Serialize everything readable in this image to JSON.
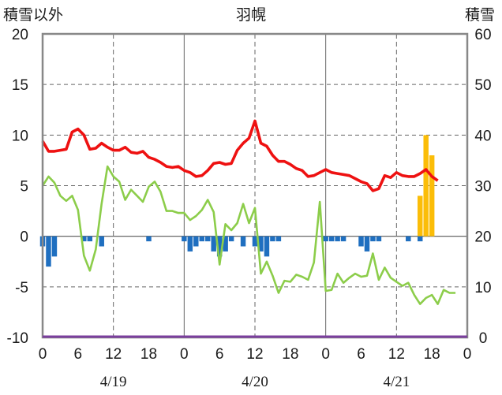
{
  "chart_data": {
    "type": "bar+line",
    "title": "羽幌",
    "left_axis_label": "積雪以外",
    "right_axis_label": "積雪",
    "left_ylim": [
      -10,
      20
    ],
    "left_ticks": [
      "20",
      "15",
      "10",
      "5",
      "0",
      "-5",
      "-10"
    ],
    "right_ylim": [
      0,
      60
    ],
    "right_ticks": [
      "60",
      "50",
      "40",
      "30",
      "20",
      "10",
      "0"
    ],
    "x_ticks": [
      "0",
      "6",
      "12",
      "18",
      "0",
      "6",
      "12",
      "18",
      "0",
      "6",
      "12",
      "18",
      "0"
    ],
    "x_range_hours": [
      0,
      72
    ],
    "dates": [
      "4/19",
      "4/20",
      "4/21"
    ],
    "grid": "dashed",
    "colors": {
      "temperature": "#ee1111",
      "dewpoint": "#8ccd4a",
      "precipitation": "#1f6fc0",
      "snow_depth": "#fbbd08",
      "baseline": "#7b3f9e"
    },
    "temperature": {
      "x": [
        0,
        1,
        2,
        3,
        4,
        5,
        6,
        7,
        8,
        9,
        10,
        11,
        12,
        13,
        14,
        15,
        16,
        17,
        18,
        19,
        20,
        21,
        22,
        23,
        24,
        25,
        26,
        27,
        28,
        29,
        30,
        31,
        32,
        33,
        34,
        35,
        36,
        37,
        38,
        39,
        40,
        41,
        42,
        43,
        44,
        45,
        46,
        47,
        48,
        49,
        50,
        51,
        52,
        53,
        54,
        55,
        56,
        57,
        58,
        59,
        60,
        61,
        62,
        63,
        64,
        65,
        66,
        67
      ],
      "values": [
        9.4,
        8.4,
        8.4,
        8.5,
        8.6,
        10.3,
        10.6,
        10.0,
        8.6,
        8.7,
        9.2,
        8.8,
        8.5,
        8.5,
        8.8,
        8.3,
        8.2,
        8.4,
        7.8,
        7.6,
        7.3,
        6.9,
        6.8,
        6.9,
        6.5,
        6.3,
        5.9,
        6.0,
        6.5,
        7.2,
        7.3,
        7.1,
        7.2,
        8.5,
        9.2,
        9.7,
        11.4,
        9.2,
        8.9,
        8.0,
        7.4,
        7.4,
        7.1,
        6.7,
        6.5,
        5.9,
        6.0,
        6.3,
        6.6,
        6.3,
        6.2,
        6.1,
        6.0,
        5.7,
        5.4,
        5.2,
        4.5,
        4.7,
        6.0,
        5.8,
        6.3,
        6.0,
        5.9,
        5.9,
        6.2,
        6.6,
        5.9,
        5.5
      ]
    },
    "dewpoint": {
      "x": [
        0,
        1,
        2,
        3,
        4,
        5,
        6,
        7,
        8,
        9,
        10,
        11,
        12,
        13,
        14,
        15,
        16,
        17,
        18,
        19,
        20,
        21,
        22,
        23,
        24,
        25,
        26,
        27,
        28,
        29,
        30,
        31,
        32,
        33,
        34,
        35,
        36,
        37,
        38,
        39,
        40,
        41,
        42,
        43,
        44,
        45,
        46,
        47,
        48,
        49,
        50,
        51,
        52,
        53,
        54,
        55,
        56,
        57,
        58,
        59,
        60,
        61,
        62,
        63,
        64,
        65,
        66,
        67,
        68,
        69,
        70
      ],
      "values": [
        5.0,
        5.9,
        5.3,
        4.0,
        3.5,
        4.0,
        2.6,
        -1.9,
        -3.4,
        -1.3,
        3.2,
        6.9,
        5.9,
        5.4,
        3.6,
        4.6,
        4.0,
        3.4,
        4.9,
        5.4,
        4.4,
        2.5,
        2.5,
        2.3,
        2.3,
        1.6,
        2.0,
        2.6,
        3.6,
        2.4,
        -2.8,
        1.2,
        0.6,
        1.3,
        3.2,
        1.3,
        2.8,
        -3.7,
        -2.5,
        -3.9,
        -5.6,
        -4.4,
        -4.5,
        -3.8,
        -4.0,
        -4.3,
        -2.6,
        3.4,
        -5.4,
        -5.3,
        -3.7,
        -4.6,
        -4.1,
        -3.7,
        -4.0,
        -3.9,
        -1.7,
        -4.3,
        -3.1,
        -4.1,
        -4.5,
        -4.9,
        -4.6,
        -5.8,
        -6.7,
        -6.1,
        -5.8,
        -6.7,
        -5.3,
        -5.6,
        -5.6
      ]
    },
    "precipitation": {
      "x": [
        0,
        1,
        2,
        7,
        8,
        10,
        18,
        24,
        25,
        26,
        27,
        28,
        29,
        30,
        31,
        32,
        34,
        36,
        37,
        38,
        39,
        40,
        48,
        49,
        50,
        51,
        54,
        55,
        56,
        57,
        62,
        64
      ],
      "values": [
        -1.0,
        -3.0,
        -2.0,
        -0.5,
        -0.5,
        -1.0,
        -0.5,
        -0.5,
        -1.5,
        -1.0,
        -0.5,
        -0.5,
        -1.5,
        -2.0,
        -1.5,
        -0.5,
        -1.0,
        -1.0,
        -1.5,
        -2.0,
        -0.5,
        -0.5,
        -0.5,
        -0.5,
        -0.5,
        -0.5,
        -1.0,
        -1.5,
        -0.5,
        -0.5,
        -0.5,
        -0.5
      ]
    },
    "snow_depth": {
      "x": [
        64,
        65,
        66
      ],
      "values": [
        28,
        40,
        36
      ]
    }
  }
}
